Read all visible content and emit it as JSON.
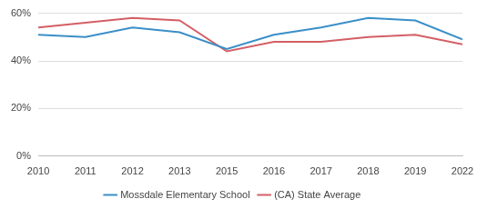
{
  "chart_data": {
    "type": "line",
    "categories": [
      "2010",
      "2011",
      "2012",
      "2013",
      "2015",
      "2016",
      "2017",
      "2018",
      "2019",
      "2022"
    ],
    "series": [
      {
        "name": "Mossdale Elementary School",
        "color": "#3a8fc8",
        "values": [
          51,
          50,
          54,
          52,
          45,
          51,
          54,
          58,
          57,
          49
        ]
      },
      {
        "name": "(CA) State Average",
        "color": "#d35f64",
        "values": [
          54,
          56,
          58,
          57,
          44,
          48,
          48,
          50,
          51,
          47
        ]
      }
    ],
    "ylim": [
      0,
      60
    ],
    "yticks": [
      {
        "value": 0,
        "label": "0%"
      },
      {
        "value": 20,
        "label": "20%"
      },
      {
        "value": 40,
        "label": "40%"
      },
      {
        "value": 60,
        "label": "60%"
      }
    ],
    "grid": true,
    "legend": "bottom"
  }
}
